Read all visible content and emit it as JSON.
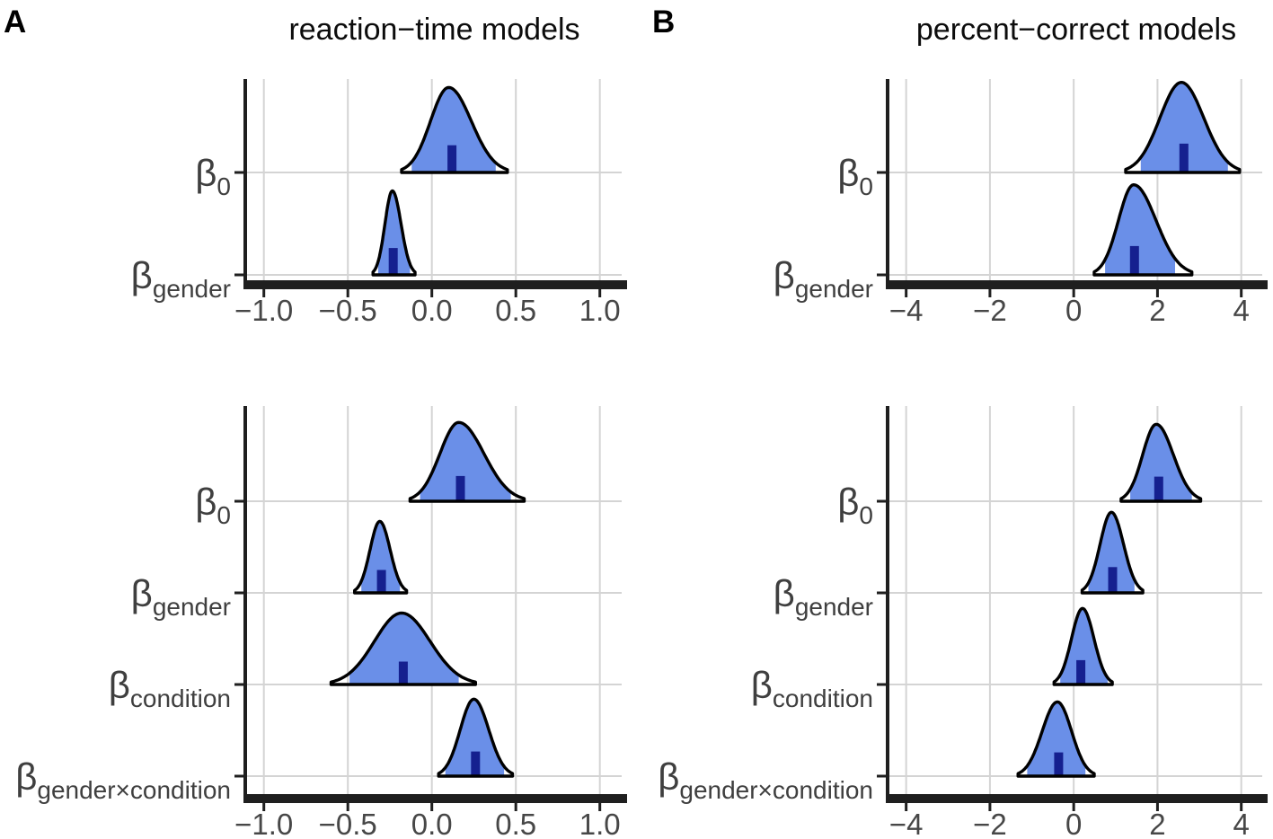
{
  "figure": {
    "panel_labels": [
      "A",
      "B"
    ]
  },
  "style": {
    "background": "#ffffff",
    "density_fill": "#6a8fe8",
    "median_marker": "#15208f",
    "density_outline": "#000000",
    "gridline": "#d4d4d4",
    "axis": "#1f1f1f",
    "tick_text": "#474747",
    "label_text": "#3f3f3f",
    "title_text": "#0c0c0c"
  },
  "chart_data": [
    {
      "id": "A-top",
      "panel": "A",
      "type": "density-ridge",
      "title": "reaction−time models",
      "legend": "none",
      "grid": "major",
      "x_axis": {
        "range": [
          -1.1,
          1.13
        ],
        "ticks": [
          -1.0,
          -0.5,
          0.0,
          0.5,
          1.0
        ],
        "tick_labels": [
          "−1.0",
          "−0.5",
          "0.0",
          "0.5",
          "1.0"
        ]
      },
      "rows": [
        {
          "param": "beta_0",
          "label": {
            "base": "β",
            "sub": "0"
          },
          "median": 0.12,
          "mode": 0.1,
          "curve_range": [
            -0.18,
            0.45
          ],
          "shaded_interval": [
            -0.12,
            0.38
          ],
          "peak_rel": 0.83
        },
        {
          "param": "beta_gender",
          "label": {
            "base": "β",
            "sub": "gender"
          },
          "median": -0.23,
          "mode": -0.235,
          "curve_range": [
            -0.35,
            -0.1
          ],
          "shaded_interval": [
            -0.32,
            -0.13
          ],
          "peak_rel": 0.82
        }
      ]
    },
    {
      "id": "B-top",
      "panel": "B",
      "type": "density-ridge",
      "title": "percent−correct models",
      "legend": "none",
      "grid": "major",
      "x_axis": {
        "range": [
          -4.4,
          4.5
        ],
        "ticks": [
          -4,
          -2,
          0,
          2,
          4
        ],
        "tick_labels": [
          "−4",
          "−2",
          "0",
          "2",
          "4"
        ]
      },
      "rows": [
        {
          "param": "beta_0",
          "label": {
            "base": "β",
            "sub": "0"
          },
          "median": 2.63,
          "mode": 2.57,
          "curve_range": [
            1.24,
            3.96
          ],
          "shaded_interval": [
            1.6,
            3.68
          ],
          "peak_rel": 0.88
        },
        {
          "param": "beta_gender",
          "label": {
            "base": "β",
            "sub": "gender"
          },
          "median": 1.45,
          "mode": 1.43,
          "curve_range": [
            0.49,
            2.82
          ],
          "shaded_interval": [
            0.75,
            2.42
          ],
          "peak_rel": 0.88
        }
      ]
    },
    {
      "id": "A-bottom",
      "panel": "A",
      "type": "density-ridge",
      "title": "",
      "legend": "none",
      "grid": "major",
      "x_axis": {
        "range": [
          -1.1,
          1.13
        ],
        "ticks": [
          -1.0,
          -0.5,
          0.0,
          0.5,
          1.0
        ],
        "tick_labels": [
          "−1.0",
          "−0.5",
          "0.0",
          "0.5",
          "1.0"
        ]
      },
      "rows": [
        {
          "param": "beta_0",
          "label": {
            "base": "β",
            "sub": "0"
          },
          "median": 0.17,
          "mode": 0.16,
          "curve_range": [
            -0.13,
            0.55
          ],
          "shaded_interval": [
            -0.07,
            0.47
          ],
          "peak_rel": 0.86
        },
        {
          "param": "beta_gender",
          "label": {
            "base": "β",
            "sub": "gender"
          },
          "median": -0.3,
          "mode": -0.31,
          "curve_range": [
            -0.46,
            -0.15
          ],
          "shaded_interval": [
            -0.42,
            -0.19
          ],
          "peak_rel": 0.78
        },
        {
          "param": "beta_condition",
          "label": {
            "base": "β",
            "sub": "condition"
          },
          "median": -0.17,
          "mode": -0.18,
          "curve_range": [
            -0.6,
            0.26
          ],
          "shaded_interval": [
            -0.49,
            0.16
          ],
          "peak_rel": 0.78
        },
        {
          "param": "beta_gender_x_condition",
          "label": {
            "base": "β",
            "sub": "gender×condition"
          },
          "median": 0.26,
          "mode": 0.25,
          "curve_range": [
            0.04,
            0.48
          ],
          "shaded_interval": [
            0.08,
            0.43
          ],
          "peak_rel": 0.84
        }
      ]
    },
    {
      "id": "B-bottom",
      "panel": "B",
      "type": "density-ridge",
      "title": "",
      "legend": "none",
      "grid": "major",
      "x_axis": {
        "range": [
          -4.4,
          4.5
        ],
        "ticks": [
          -4,
          -2,
          0,
          2,
          4
        ],
        "tick_labels": [
          "−4",
          "−2",
          "0",
          "2",
          "4"
        ]
      },
      "rows": [
        {
          "param": "beta_0",
          "label": {
            "base": "β",
            "sub": "0"
          },
          "median": 2.03,
          "mode": 1.97,
          "curve_range": [
            1.13,
            3.03
          ],
          "shaded_interval": [
            1.35,
            2.82
          ],
          "peak_rel": 0.84
        },
        {
          "param": "beta_gender",
          "label": {
            "base": "β",
            "sub": "gender"
          },
          "median": 0.93,
          "mode": 0.9,
          "curve_range": [
            0.2,
            1.65
          ],
          "shaded_interval": [
            0.35,
            1.45
          ],
          "peak_rel": 0.88
        },
        {
          "param": "beta_condition",
          "label": {
            "base": "β",
            "sub": "condition"
          },
          "median": 0.17,
          "mode": 0.21,
          "curve_range": [
            -0.47,
            0.92
          ],
          "shaded_interval": [
            -0.32,
            0.81
          ],
          "peak_rel": 0.83
        },
        {
          "param": "beta_gender_x_condition",
          "label": {
            "base": "β",
            "sub": "gender×condition"
          },
          "median": -0.36,
          "mode": -0.39,
          "curve_range": [
            -1.33,
            0.49
          ],
          "shaded_interval": [
            -1.11,
            0.28
          ],
          "peak_rel": 0.81
        }
      ]
    }
  ]
}
